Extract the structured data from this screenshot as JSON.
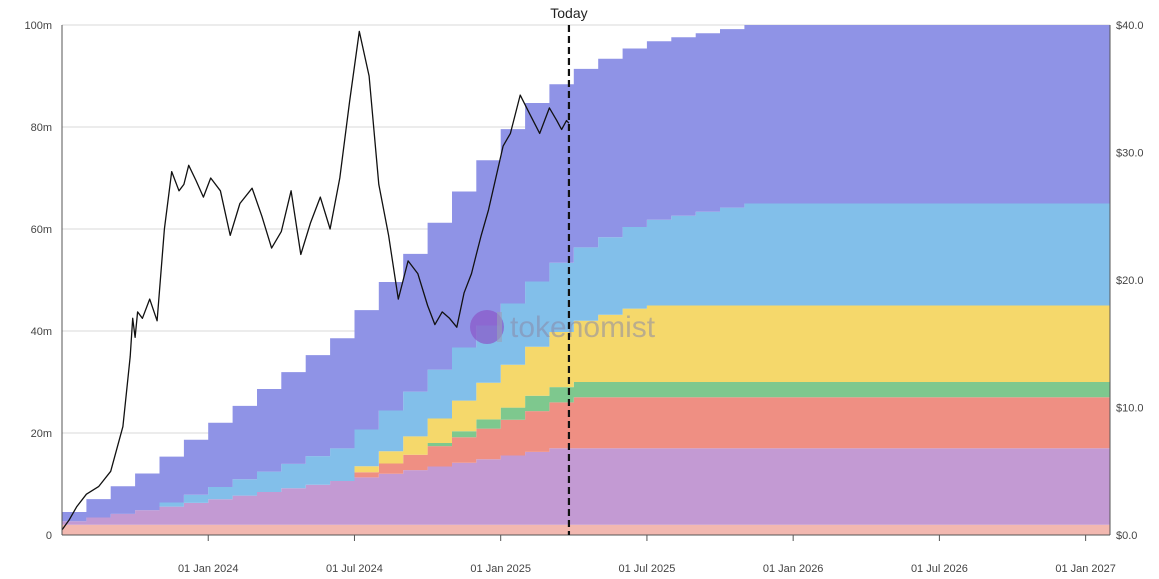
{
  "chart_data": {
    "type": "area",
    "title": "",
    "today_label": "Today",
    "watermark": "tokenomist",
    "left_axis": {
      "ylim": [
        0,
        100
      ],
      "tick_values": [
        0,
        20,
        40,
        60,
        80,
        100
      ],
      "tick_labels": [
        "0",
        "20m",
        "40m",
        "60m",
        "80m",
        "100m"
      ]
    },
    "right_axis": {
      "ylim": [
        0,
        40
      ],
      "tick_values": [
        0,
        10,
        20,
        30,
        40
      ],
      "tick_labels": [
        "$0.0",
        "$10.0",
        "$20.0",
        "$30.0",
        "$40.0"
      ]
    },
    "x_axis": {
      "start": 0,
      "end": 43,
      "tick_values": [
        6,
        12,
        18,
        24,
        30,
        36,
        42
      ],
      "tick_labels": [
        "01 Jan 2024",
        "01 Jul 2024",
        "01 Jan 2025",
        "01 Jul 2025",
        "01 Jan 2026",
        "01 Jul 2026",
        "01 Jan 2027"
      ],
      "unit": "months since Jul 2023"
    },
    "today_x": 20.8,
    "series_note": "stacked monthly unlock steps (millions of tokens), bottom to top",
    "series": [
      {
        "name": "base",
        "color": "#f2b8b0",
        "starts": 0,
        "step": 0,
        "cap": 2
      },
      {
        "name": "purple",
        "color": "#c39ad3",
        "starts": 0,
        "step": 0.715,
        "cap": 15
      },
      {
        "name": "red",
        "color": "#ef8f83",
        "starts": 12,
        "step": 1.0,
        "cap": 10
      },
      {
        "name": "green",
        "color": "#7ec88e",
        "starts": 15,
        "step": 0.6,
        "cap": 3
      },
      {
        "name": "yellow",
        "color": "#f5d86b",
        "starts": 12,
        "step": 1.2,
        "cap": 15
      },
      {
        "name": "lightblue",
        "color": "#82bfea",
        "starts": 4,
        "step": 0.8,
        "cap": 20
      },
      {
        "name": "blue",
        "color": "#8f93e6",
        "starts": 0,
        "step": 1.8,
        "cap": 35
      }
    ],
    "price_series": {
      "name": "price",
      "color": "#111111",
      "x": [
        0,
        0.3,
        0.6,
        1.0,
        1.5,
        2.0,
        2.5,
        2.8,
        2.9,
        3.0,
        3.1,
        3.3,
        3.6,
        3.9,
        4.2,
        4.5,
        4.8,
        5.0,
        5.2,
        5.5,
        5.8,
        6.1,
        6.5,
        6.9,
        7.3,
        7.8,
        8.2,
        8.6,
        9.0,
        9.4,
        9.8,
        10.2,
        10.6,
        11.0,
        11.4,
        11.8,
        12.2,
        12.6,
        13.0,
        13.4,
        13.8,
        14.2,
        14.6,
        15.0,
        15.3,
        15.6,
        15.9,
        16.2,
        16.5,
        16.8,
        17.0,
        17.2,
        17.5,
        17.8,
        18.1,
        18.4,
        18.8,
        19.2,
        19.6,
        20.0,
        20.3,
        20.5,
        20.7,
        20.8
      ],
      "values": [
        0.4,
        1.2,
        2.2,
        3.2,
        3.8,
        5.0,
        8.5,
        14.0,
        17.0,
        15.5,
        17.5,
        17.0,
        18.5,
        16.8,
        24.0,
        28.5,
        27.0,
        27.5,
        29.0,
        27.8,
        26.5,
        28.0,
        27.0,
        23.5,
        26.0,
        27.2,
        25.0,
        22.5,
        23.8,
        27.0,
        22.0,
        24.5,
        26.5,
        24.0,
        28.0,
        34.0,
        39.5,
        36.0,
        27.5,
        23.5,
        18.5,
        21.5,
        20.5,
        18.0,
        16.5,
        17.5,
        17.0,
        16.3,
        19.0,
        20.5,
        22.0,
        23.5,
        25.5,
        28.0,
        30.5,
        31.5,
        34.5,
        33.0,
        31.5,
        33.5,
        32.5,
        31.8,
        32.5,
        32.3
      ]
    }
  }
}
